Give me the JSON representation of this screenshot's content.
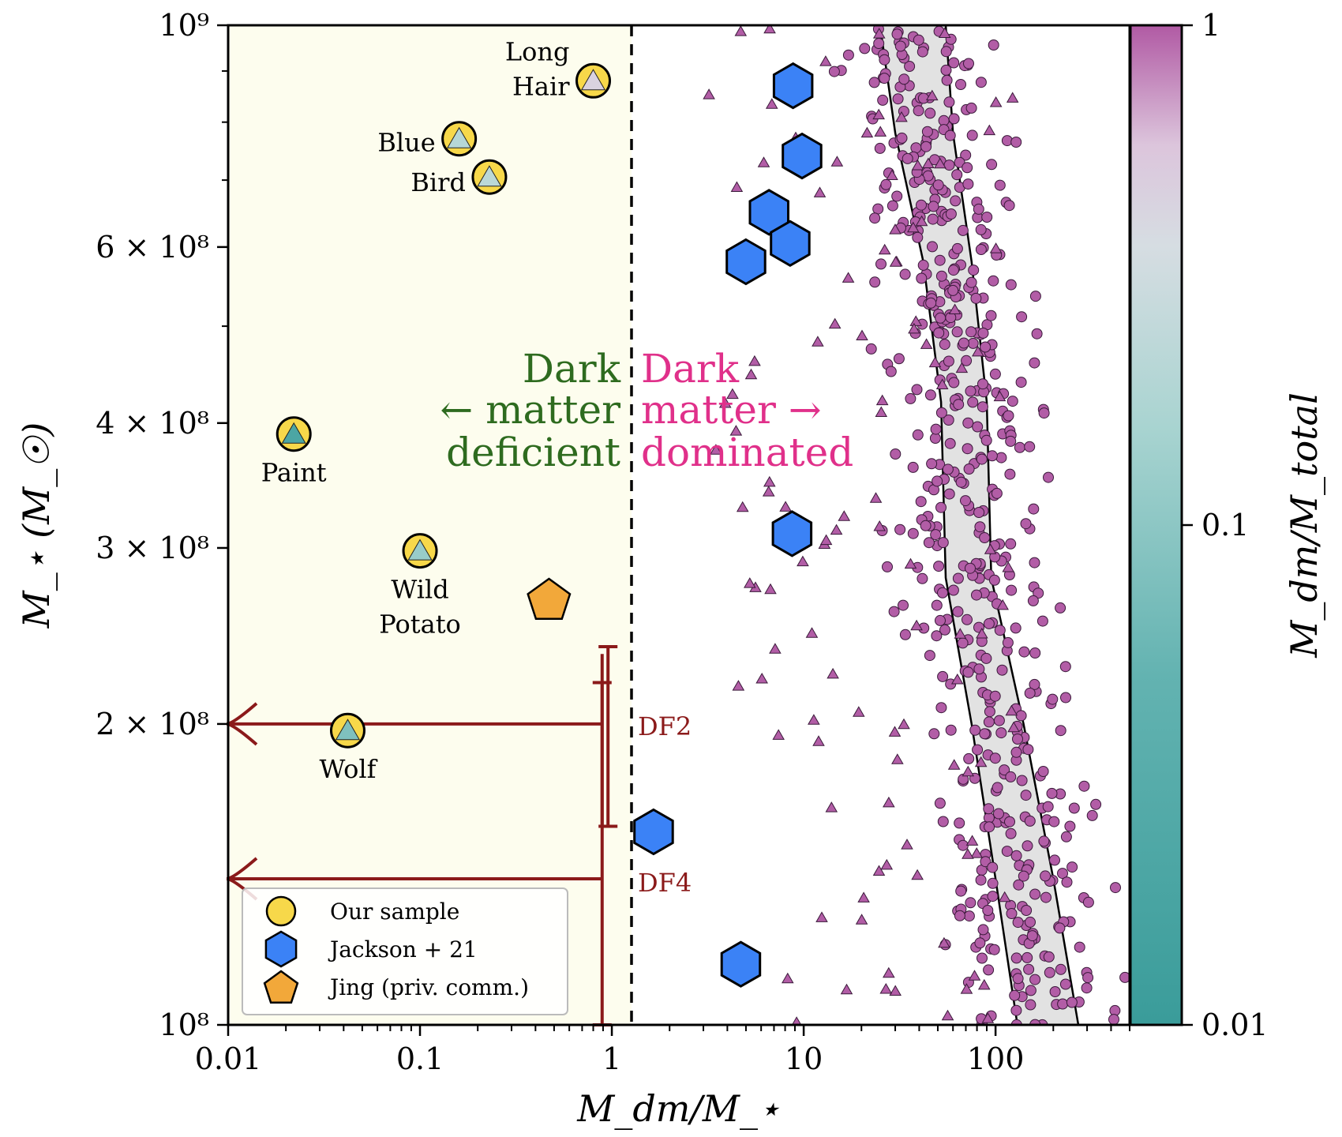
{
  "chart_data": {
    "type": "scatter",
    "xscale": "log",
    "yscale": "log",
    "xlim": [
      0.01,
      500
    ],
    "ylim": [
      100000000,
      1000000000
    ],
    "xlabel": "M_dm/M_⋆",
    "ylabel": "M_⋆ (M_☉)",
    "x_ticks": [
      "0.01",
      "0.1",
      "1",
      "10",
      "100"
    ],
    "y_ticks": [
      {
        "value": 100000000,
        "label": "10⁸"
      },
      {
        "value": 200000000,
        "label": "2 × 10⁸"
      },
      {
        "value": 300000000,
        "label": "3 × 10⁸"
      },
      {
        "value": 400000000,
        "label": "4 × 10⁸"
      },
      {
        "value": 600000000,
        "label": "6 × 10⁸"
      },
      {
        "value": 1000000000,
        "label": "10⁹"
      }
    ],
    "divider_x": 1,
    "region_labels": {
      "left": {
        "lines": [
          "Dark",
          "← matter",
          "deficient"
        ],
        "color": "#2e6b1f"
      },
      "right": {
        "lines": [
          "Dark",
          "matter →",
          "dominated"
        ],
        "color": "#e0308a"
      }
    },
    "colors": {
      "deficient_region": "#fdfdee",
      "our_sample": "#f7d84a",
      "jackson": "#3b82f6",
      "jing": "#f2a83a",
      "df_arrows": "#8b1a1a",
      "sim_points": "#b25da6",
      "band_fill": "#e2e2e2"
    },
    "our_sample": [
      {
        "name_lines": [
          "Long",
          "Hair"
        ],
        "x": 0.8,
        "y": 880000000,
        "frac": 0.45,
        "label_pos": "left"
      },
      {
        "name_lines": [
          "Blue"
        ],
        "x": 0.16,
        "y": 770000000,
        "frac": 0.2,
        "label_pos": "left"
      },
      {
        "name_lines": [
          "Bird"
        ],
        "x": 0.23,
        "y": 705000000,
        "frac": 0.22,
        "label_pos": "left"
      },
      {
        "name_lines": [
          "Paint"
        ],
        "x": 0.022,
        "y": 390000000,
        "frac": 0.02,
        "label_pos": "below"
      },
      {
        "name_lines": [
          "Wild",
          "Potato"
        ],
        "x": 0.1,
        "y": 298000000,
        "frac": 0.12,
        "label_pos": "below"
      },
      {
        "name_lines": [
          "Wolf"
        ],
        "x": 0.042,
        "y": 197000000,
        "frac": 0.08,
        "label_pos": "below"
      }
    ],
    "jackson21": [
      {
        "x": 8.8,
        "y": 870000000
      },
      {
        "x": 9.8,
        "y": 740000000
      },
      {
        "x": 6.6,
        "y": 650000000
      },
      {
        "x": 8.5,
        "y": 605000000
      },
      {
        "x": 5.0,
        "y": 580000000
      },
      {
        "x": 8.7,
        "y": 310000000
      },
      {
        "x": 1.65,
        "y": 156000000
      },
      {
        "x": 4.7,
        "y": 115000000
      }
    ],
    "jing": [
      {
        "x": 0.47,
        "y": 267000000
      }
    ],
    "df_galaxies": [
      {
        "name": "DF2",
        "y": 200000000,
        "x_upper": 0.89,
        "x_arrow_end": 0.01,
        "yerr": [
          158000000,
          239000000
        ],
        "x_err_vertical": 0.955
      },
      {
        "name": "DF4",
        "y": 140000000,
        "x_upper": 0.89,
        "x_arrow_end": 0.01,
        "yerr": [
          100000000,
          220000000
        ],
        "x_err_vertical": 0.89
      }
    ],
    "simulation_band": {
      "left_edge": [
        [
          25,
          1000000000
        ],
        [
          30,
          780000000
        ],
        [
          42,
          580000000
        ],
        [
          52,
          420000000
        ],
        [
          55,
          280000000
        ],
        [
          75,
          200000000
        ],
        [
          100,
          140000000
        ],
        [
          130,
          100000000
        ]
      ],
      "right_edge": [
        [
          55,
          1000000000
        ],
        [
          60,
          780000000
        ],
        [
          75,
          580000000
        ],
        [
          90,
          420000000
        ],
        [
          95,
          280000000
        ],
        [
          140,
          200000000
        ],
        [
          200,
          140000000
        ],
        [
          270,
          100000000
        ]
      ]
    },
    "colorbar": {
      "label": "M_dm/M_total",
      "ticks": [
        "1",
        "0.1",
        "0.01"
      ],
      "scale": "log",
      "range": [
        0.01,
        1
      ]
    },
    "legend": {
      "position": "lower-left",
      "entries": [
        {
          "label": "Our sample",
          "marker": "circle"
        },
        {
          "label": "Jackson + 21",
          "marker": "hexagon"
        },
        {
          "label": "Jing (priv. comm.)",
          "marker": "pentagon"
        }
      ]
    }
  }
}
